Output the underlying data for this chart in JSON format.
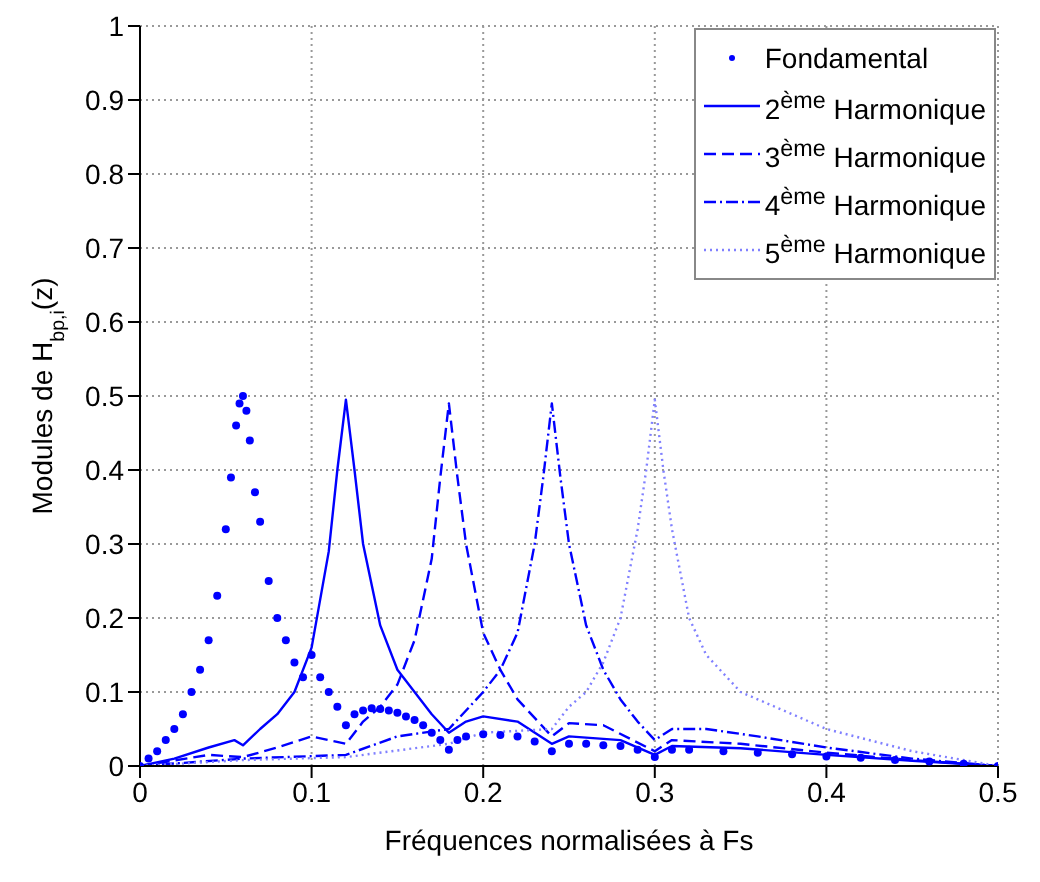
{
  "chart_data": {
    "type": "line",
    "xlabel": "Fréquences normalisées à Fs",
    "ylabel": "Modules de H$_{bp,i}$(z)",
    "xlim": [
      0,
      0.5
    ],
    "xticks": [
      0,
      0.1,
      0.2,
      0.3,
      0.4,
      0.5
    ],
    "ylim": [
      0,
      1
    ],
    "yticks": [
      0,
      0.1,
      0.2,
      0.3,
      0.4,
      0.5,
      0.6,
      0.7,
      0.8,
      0.9,
      1
    ],
    "grid": true,
    "legend": "top right",
    "series": [
      {
        "name": "Fondamental",
        "type": "scatter",
        "marker": "circle",
        "color": "#0000ff",
        "x": [
          0,
          0.005,
          0.01,
          0.015,
          0.02,
          0.025,
          0.03,
          0.035,
          0.04,
          0.045,
          0.05,
          0.053,
          0.056,
          0.058,
          0.06,
          0.062,
          0.064,
          0.067,
          0.07,
          0.075,
          0.08,
          0.085,
          0.09,
          0.095,
          0.1,
          0.105,
          0.11,
          0.115,
          0.12,
          0.125,
          0.13,
          0.135,
          0.14,
          0.145,
          0.15,
          0.155,
          0.16,
          0.165,
          0.17,
          0.175,
          0.18,
          0.185,
          0.19,
          0.2,
          0.21,
          0.22,
          0.23,
          0.24,
          0.25,
          0.26,
          0.27,
          0.28,
          0.29,
          0.3,
          0.31,
          0.32,
          0.34,
          0.36,
          0.38,
          0.4,
          0.42,
          0.44,
          0.46,
          0.48,
          0.5
        ],
        "values": [
          0,
          0.01,
          0.02,
          0.035,
          0.05,
          0.07,
          0.1,
          0.13,
          0.17,
          0.23,
          0.32,
          0.39,
          0.46,
          0.49,
          0.5,
          0.48,
          0.44,
          0.37,
          0.33,
          0.25,
          0.2,
          0.17,
          0.14,
          0.12,
          0.15,
          0.12,
          0.1,
          0.08,
          0.055,
          0.07,
          0.075,
          0.078,
          0.077,
          0.075,
          0.072,
          0.067,
          0.062,
          0.055,
          0.045,
          0.035,
          0.022,
          0.035,
          0.04,
          0.043,
          0.042,
          0.04,
          0.033,
          0.02,
          0.03,
          0.03,
          0.028,
          0.027,
          0.022,
          0.012,
          0.022,
          0.022,
          0.02,
          0.018,
          0.016,
          0.013,
          0.011,
          0.008,
          0.006,
          0.003,
          0
        ]
      },
      {
        "name": "2$^{ème}$ Harmonique",
        "line_style": "solid",
        "color": "#0000ff",
        "x": [
          0,
          0.02,
          0.04,
          0.055,
          0.06,
          0.07,
          0.08,
          0.09,
          0.1,
          0.11,
          0.115,
          0.12,
          0.125,
          0.13,
          0.14,
          0.15,
          0.16,
          0.17,
          0.18,
          0.19,
          0.2,
          0.22,
          0.24,
          0.25,
          0.28,
          0.3,
          0.31,
          0.35,
          0.4,
          0.45,
          0.5
        ],
        "values": [
          0,
          0.01,
          0.025,
          0.035,
          0.028,
          0.05,
          0.07,
          0.1,
          0.16,
          0.29,
          0.4,
          0.495,
          0.4,
          0.3,
          0.19,
          0.13,
          0.1,
          0.07,
          0.045,
          0.06,
          0.067,
          0.06,
          0.03,
          0.04,
          0.035,
          0.015,
          0.027,
          0.024,
          0.015,
          0.007,
          0
        ]
      },
      {
        "name": "3$^{ème}$ Harmonique",
        "line_style": "dashed",
        "color": "#0000ff",
        "x": [
          0,
          0.04,
          0.06,
          0.08,
          0.1,
          0.12,
          0.13,
          0.14,
          0.15,
          0.16,
          0.17,
          0.175,
          0.18,
          0.185,
          0.19,
          0.2,
          0.21,
          0.22,
          0.23,
          0.24,
          0.25,
          0.27,
          0.3,
          0.31,
          0.35,
          0.4,
          0.45,
          0.5
        ],
        "values": [
          0,
          0.015,
          0.012,
          0.025,
          0.04,
          0.03,
          0.06,
          0.08,
          0.11,
          0.17,
          0.28,
          0.39,
          0.49,
          0.39,
          0.3,
          0.18,
          0.13,
          0.09,
          0.065,
          0.04,
          0.058,
          0.055,
          0.02,
          0.035,
          0.03,
          0.018,
          0.008,
          0
        ]
      },
      {
        "name": "4$^{ème}$ Harmonique",
        "line_style": "dashdot",
        "color": "#0000ff",
        "x": [
          0,
          0.06,
          0.12,
          0.15,
          0.18,
          0.2,
          0.21,
          0.22,
          0.23,
          0.235,
          0.24,
          0.245,
          0.25,
          0.26,
          0.27,
          0.28,
          0.29,
          0.3,
          0.31,
          0.33,
          0.36,
          0.4,
          0.45,
          0.5
        ],
        "values": [
          0,
          0.01,
          0.015,
          0.04,
          0.05,
          0.1,
          0.13,
          0.18,
          0.3,
          0.39,
          0.49,
          0.39,
          0.3,
          0.19,
          0.13,
          0.09,
          0.06,
          0.035,
          0.05,
          0.05,
          0.04,
          0.025,
          0.01,
          0
        ]
      },
      {
        "name": "5$^{ème}$ Harmonique",
        "line_style": "dotted",
        "color": "#8080ff",
        "x": [
          0,
          0.06,
          0.12,
          0.18,
          0.2,
          0.24,
          0.25,
          0.26,
          0.27,
          0.28,
          0.29,
          0.295,
          0.3,
          0.305,
          0.31,
          0.32,
          0.33,
          0.35,
          0.38,
          0.4,
          0.45,
          0.5
        ],
        "values": [
          0,
          0.008,
          0.012,
          0.03,
          0.045,
          0.05,
          0.08,
          0.1,
          0.14,
          0.2,
          0.32,
          0.4,
          0.495,
          0.4,
          0.32,
          0.2,
          0.15,
          0.1,
          0.07,
          0.05,
          0.02,
          0
        ]
      }
    ]
  }
}
